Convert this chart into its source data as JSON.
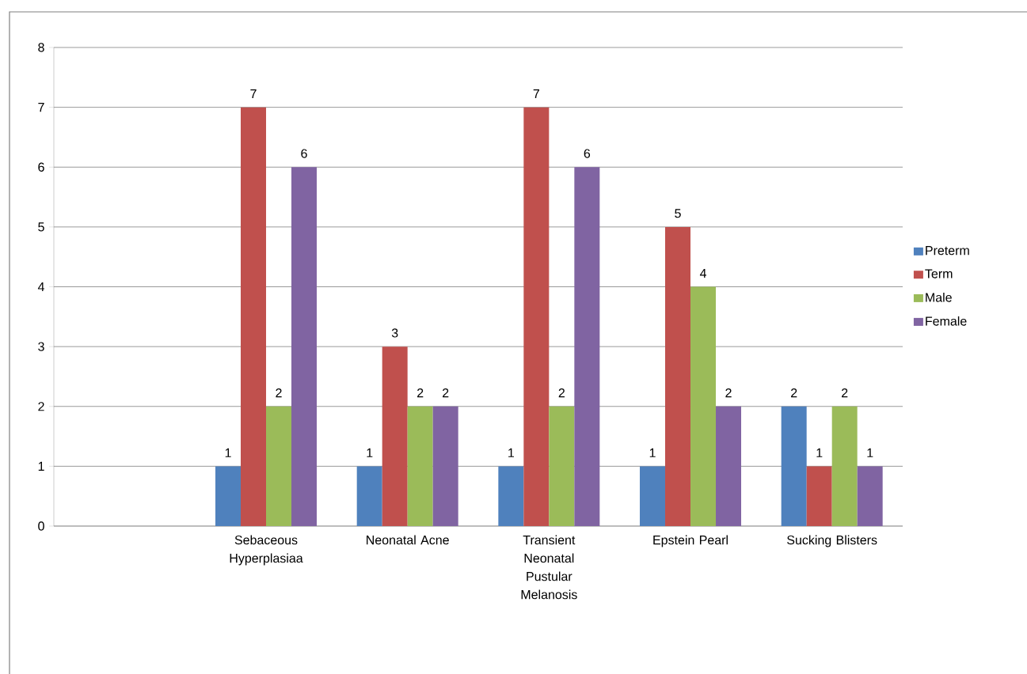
{
  "chart_data": {
    "type": "bar",
    "categories": [
      null,
      "Sebaceous Hyperplasiaa",
      "Neonatal Acne",
      "Transient Neonatal Pustular Melanosis",
      "Epstein Pearl",
      "Sucking Blisters"
    ],
    "series": [
      {
        "name": "Preterm",
        "color": "#4f81bd",
        "values": [
          null,
          1,
          1,
          1,
          1,
          2
        ]
      },
      {
        "name": "Term",
        "color": "#c0504d",
        "values": [
          null,
          7,
          3,
          7,
          5,
          1
        ]
      },
      {
        "name": "Male",
        "color": "#9bbb59",
        "values": [
          null,
          2,
          2,
          2,
          4,
          2
        ]
      },
      {
        "name": "Female",
        "color": "#8064a2",
        "values": [
          null,
          6,
          2,
          6,
          2,
          1
        ]
      }
    ],
    "ylim": [
      0,
      8
    ],
    "yticks": [
      0,
      1,
      2,
      3,
      4,
      5,
      6,
      7,
      8
    ],
    "grid": "y",
    "legend": "right",
    "data_labels": true
  }
}
